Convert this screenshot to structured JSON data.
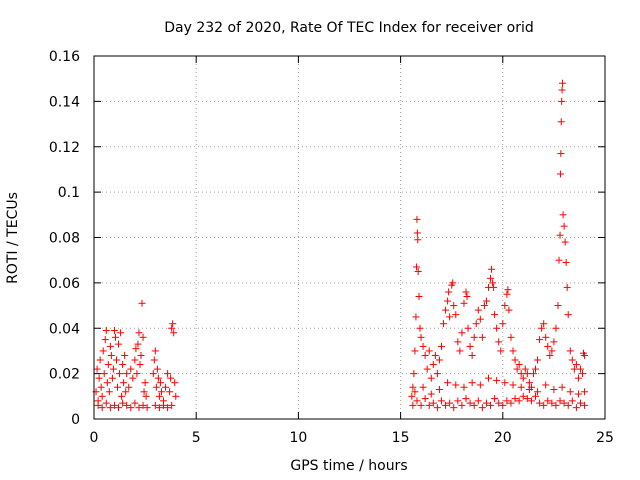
{
  "chart_data": {
    "type": "scatter",
    "title": "Day 232 of 2020, Rate Of TEC Index for receiver orid",
    "xlabel": "GPS time / hours",
    "ylabel": "ROTI / TECUs",
    "xlim": [
      0,
      25
    ],
    "ylim": [
      0,
      0.16
    ],
    "xticks": [
      0,
      5,
      10,
      15,
      20,
      25
    ],
    "xtick_labels": [
      "0",
      "5",
      "10",
      "15",
      "20",
      "25"
    ],
    "yticks": [
      0,
      0.02,
      0.04,
      0.06,
      0.08,
      0.1,
      0.12,
      0.14,
      0.16
    ],
    "ytick_labels": [
      "0",
      "0.02",
      "0.04",
      "0.06",
      "0.08",
      "0.1",
      "0.12",
      "0.14",
      "0.16"
    ],
    "grid": true,
    "marker": "+",
    "color": "#ff0000",
    "series": [
      {
        "name": "ROTI",
        "points": [
          [
            0.1,
            0.012
          ],
          [
            0.15,
            0.022
          ],
          [
            0.2,
            0.008
          ],
          [
            0.25,
            0.018
          ],
          [
            0.3,
            0.026
          ],
          [
            0.35,
            0.014
          ],
          [
            0.4,
            0.01
          ],
          [
            0.45,
            0.03
          ],
          [
            0.5,
            0.02
          ],
          [
            0.55,
            0.035
          ],
          [
            0.6,
            0.039
          ],
          [
            0.65,
            0.016
          ],
          [
            0.7,
            0.024
          ],
          [
            0.75,
            0.012
          ],
          [
            0.8,
            0.032
          ],
          [
            0.85,
            0.028
          ],
          [
            0.9,
            0.018
          ],
          [
            0.95,
            0.022
          ],
          [
            1.0,
            0.039
          ],
          [
            1.05,
            0.036
          ],
          [
            1.1,
            0.026
          ],
          [
            1.15,
            0.014
          ],
          [
            1.2,
            0.033
          ],
          [
            1.25,
            0.02
          ],
          [
            1.3,
            0.038
          ],
          [
            1.35,
            0.01
          ],
          [
            1.4,
            0.024
          ],
          [
            1.45,
            0.016
          ],
          [
            1.5,
            0.028
          ],
          [
            1.55,
            0.012
          ],
          [
            1.6,
            0.02
          ],
          [
            1.7,
            0.014
          ],
          [
            1.8,
            0.022
          ],
          [
            1.9,
            0.018
          ],
          [
            2.0,
            0.026
          ],
          [
            2.05,
            0.031
          ],
          [
            2.1,
            0.02
          ],
          [
            2.15,
            0.033
          ],
          [
            2.2,
            0.038
          ],
          [
            2.25,
            0.024
          ],
          [
            2.3,
            0.028
          ],
          [
            2.35,
            0.051
          ],
          [
            2.4,
            0.036
          ],
          [
            2.45,
            0.012
          ],
          [
            2.5,
            0.016
          ],
          [
            2.55,
            0.01
          ],
          [
            2.9,
            0.02
          ],
          [
            2.95,
            0.026
          ],
          [
            3.0,
            0.03
          ],
          [
            3.05,
            0.014
          ],
          [
            3.1,
            0.022
          ],
          [
            3.15,
            0.018
          ],
          [
            3.2,
            0.01
          ],
          [
            3.25,
            0.016
          ],
          [
            3.3,
            0.012
          ],
          [
            3.4,
            0.008
          ],
          [
            3.5,
            0.014
          ],
          [
            3.6,
            0.02
          ],
          [
            3.7,
            0.012
          ],
          [
            3.75,
            0.018
          ],
          [
            3.8,
            0.04
          ],
          [
            3.85,
            0.042
          ],
          [
            3.9,
            0.038
          ],
          [
            3.95,
            0.016
          ],
          [
            4.0,
            0.01
          ],
          [
            15.55,
            0.01
          ],
          [
            15.6,
            0.014
          ],
          [
            15.65,
            0.02
          ],
          [
            15.7,
            0.03
          ],
          [
            15.75,
            0.045
          ],
          [
            15.78,
            0.067
          ],
          [
            15.8,
            0.088
          ],
          [
            15.82,
            0.082
          ],
          [
            15.84,
            0.079
          ],
          [
            15.86,
            0.065
          ],
          [
            15.9,
            0.054
          ],
          [
            15.95,
            0.04
          ],
          [
            16.0,
            0.036
          ],
          [
            16.1,
            0.032
          ],
          [
            16.2,
            0.028
          ],
          [
            16.3,
            0.022
          ],
          [
            16.4,
            0.03
          ],
          [
            16.5,
            0.018
          ],
          [
            16.6,
            0.024
          ],
          [
            16.7,
            0.028
          ],
          [
            16.8,
            0.02
          ],
          [
            16.9,
            0.026
          ],
          [
            17.0,
            0.032
          ],
          [
            17.1,
            0.042
          ],
          [
            17.2,
            0.048
          ],
          [
            17.3,
            0.052
          ],
          [
            17.35,
            0.056
          ],
          [
            17.4,
            0.045
          ],
          [
            17.5,
            0.059
          ],
          [
            17.55,
            0.06
          ],
          [
            17.6,
            0.05
          ],
          [
            17.7,
            0.046
          ],
          [
            17.8,
            0.034
          ],
          [
            17.9,
            0.03
          ],
          [
            18.0,
            0.038
          ],
          [
            18.1,
            0.051
          ],
          [
            18.2,
            0.056
          ],
          [
            18.25,
            0.054
          ],
          [
            18.3,
            0.04
          ],
          [
            18.4,
            0.032
          ],
          [
            18.5,
            0.028
          ],
          [
            18.6,
            0.036
          ],
          [
            18.7,
            0.042
          ],
          [
            18.8,
            0.048
          ],
          [
            18.9,
            0.044
          ],
          [
            19.0,
            0.036
          ],
          [
            19.1,
            0.05
          ],
          [
            19.2,
            0.052
          ],
          [
            19.3,
            0.058
          ],
          [
            19.4,
            0.062
          ],
          [
            19.45,
            0.066
          ],
          [
            19.5,
            0.06
          ],
          [
            19.55,
            0.058
          ],
          [
            19.6,
            0.046
          ],
          [
            19.7,
            0.04
          ],
          [
            19.8,
            0.034
          ],
          [
            19.9,
            0.03
          ],
          [
            20.0,
            0.042
          ],
          [
            20.1,
            0.05
          ],
          [
            20.2,
            0.055
          ],
          [
            20.25,
            0.057
          ],
          [
            20.3,
            0.048
          ],
          [
            20.4,
            0.036
          ],
          [
            20.5,
            0.03
          ],
          [
            20.6,
            0.026
          ],
          [
            20.7,
            0.022
          ],
          [
            20.8,
            0.024
          ],
          [
            20.9,
            0.02
          ],
          [
            21.0,
            0.018
          ],
          [
            21.1,
            0.022
          ],
          [
            21.2,
            0.02
          ],
          [
            21.3,
            0.016
          ],
          [
            21.4,
            0.014
          ],
          [
            21.5,
            0.02
          ],
          [
            21.6,
            0.022
          ],
          [
            21.7,
            0.026
          ],
          [
            21.8,
            0.035
          ],
          [
            21.9,
            0.04
          ],
          [
            22.0,
            0.042
          ],
          [
            22.1,
            0.036
          ],
          [
            22.2,
            0.032
          ],
          [
            22.3,
            0.028
          ],
          [
            22.4,
            0.03
          ],
          [
            22.5,
            0.034
          ],
          [
            22.6,
            0.04
          ],
          [
            22.7,
            0.05
          ],
          [
            22.75,
            0.07
          ],
          [
            22.8,
            0.081
          ],
          [
            22.82,
            0.108
          ],
          [
            22.84,
            0.117
          ],
          [
            22.86,
            0.131
          ],
          [
            22.88,
            0.14
          ],
          [
            22.9,
            0.145
          ],
          [
            22.92,
            0.148
          ],
          [
            22.95,
            0.09
          ],
          [
            23.0,
            0.085
          ],
          [
            23.05,
            0.078
          ],
          [
            23.1,
            0.069
          ],
          [
            23.15,
            0.058
          ],
          [
            23.2,
            0.046
          ],
          [
            23.3,
            0.03
          ],
          [
            23.4,
            0.026
          ],
          [
            23.5,
            0.022
          ],
          [
            23.6,
            0.024
          ],
          [
            23.7,
            0.018
          ],
          [
            23.8,
            0.022
          ],
          [
            23.9,
            0.02
          ],
          [
            24.0,
            0.028
          ],
          [
            23.95,
            0.029
          ],
          [
            15.6,
            0.006
          ],
          [
            15.8,
            0.008
          ],
          [
            16.0,
            0.006
          ],
          [
            16.2,
            0.009
          ],
          [
            16.4,
            0.006
          ],
          [
            16.6,
            0.007
          ],
          [
            16.8,
            0.005
          ],
          [
            17.0,
            0.008
          ],
          [
            17.2,
            0.006
          ],
          [
            17.4,
            0.007
          ],
          [
            17.6,
            0.005
          ],
          [
            17.8,
            0.008
          ],
          [
            18.0,
            0.006
          ],
          [
            18.2,
            0.009
          ],
          [
            18.4,
            0.007
          ],
          [
            18.6,
            0.006
          ],
          [
            18.8,
            0.008
          ],
          [
            19.0,
            0.005
          ],
          [
            19.2,
            0.007
          ],
          [
            19.4,
            0.006
          ],
          [
            19.6,
            0.009
          ],
          [
            19.8,
            0.007
          ],
          [
            20.0,
            0.006
          ],
          [
            20.2,
            0.008
          ],
          [
            20.4,
            0.007
          ],
          [
            20.6,
            0.009
          ],
          [
            20.8,
            0.008
          ],
          [
            21.0,
            0.01
          ],
          [
            21.2,
            0.009
          ],
          [
            21.4,
            0.008
          ],
          [
            21.6,
            0.01
          ],
          [
            21.8,
            0.007
          ],
          [
            22.0,
            0.006
          ],
          [
            22.2,
            0.008
          ],
          [
            22.4,
            0.007
          ],
          [
            22.6,
            0.006
          ],
          [
            22.8,
            0.008
          ],
          [
            23.0,
            0.007
          ],
          [
            23.2,
            0.006
          ],
          [
            23.4,
            0.008
          ],
          [
            23.6,
            0.005
          ],
          [
            23.8,
            0.007
          ],
          [
            24.0,
            0.006
          ],
          [
            15.7,
            0.012
          ],
          [
            16.1,
            0.014
          ],
          [
            16.5,
            0.011
          ],
          [
            16.9,
            0.013
          ],
          [
            17.3,
            0.016
          ],
          [
            17.7,
            0.015
          ],
          [
            18.1,
            0.014
          ],
          [
            18.5,
            0.016
          ],
          [
            18.9,
            0.015
          ],
          [
            19.3,
            0.018
          ],
          [
            19.7,
            0.017
          ],
          [
            20.1,
            0.016
          ],
          [
            20.5,
            0.015
          ],
          [
            20.9,
            0.014
          ],
          [
            21.3,
            0.013
          ],
          [
            21.7,
            0.012
          ],
          [
            22.1,
            0.015
          ],
          [
            22.5,
            0.013
          ],
          [
            22.9,
            0.014
          ],
          [
            23.3,
            0.012
          ],
          [
            23.7,
            0.011
          ],
          [
            24.0,
            0.012
          ],
          [
            0.2,
            0.006
          ],
          [
            0.4,
            0.005
          ],
          [
            0.6,
            0.007
          ],
          [
            0.8,
            0.005
          ],
          [
            1.0,
            0.006
          ],
          [
            1.2,
            0.005
          ],
          [
            1.4,
            0.007
          ],
          [
            1.6,
            0.006
          ],
          [
            1.8,
            0.005
          ],
          [
            2.0,
            0.007
          ],
          [
            2.2,
            0.005
          ],
          [
            2.4,
            0.006
          ],
          [
            2.6,
            0.005
          ],
          [
            3.0,
            0.006
          ],
          [
            3.2,
            0.005
          ],
          [
            3.4,
            0.006
          ],
          [
            3.6,
            0.005
          ],
          [
            3.8,
            0.006
          ]
        ]
      }
    ]
  }
}
